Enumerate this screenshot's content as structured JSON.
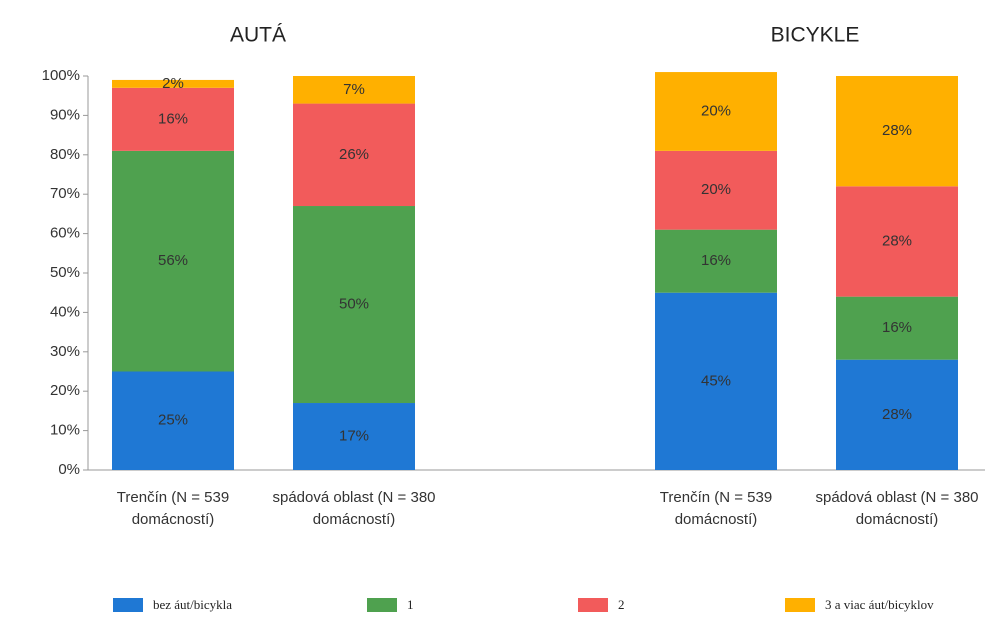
{
  "chart_data": {
    "type": "bar",
    "stacked": true,
    "annotations": [
      "AUTÁ",
      "BICYKLE"
    ],
    "categories": [
      "Trenčín (N = 539 domácností)",
      "spádová oblast (N = 380 domácností)",
      "Trenčín (N = 539 domácností)",
      "spádová oblast (N = 380 domácností)"
    ],
    "series": [
      {
        "name": "bez áut/bicykla",
        "color": "#1f78d4",
        "values": [
          25,
          17,
          45,
          28
        ],
        "value_labels": [
          "25%",
          "17%",
          "45%",
          "28%"
        ]
      },
      {
        "name": "1",
        "color": "#4fa14f",
        "values": [
          56,
          50,
          16,
          16
        ],
        "value_labels": [
          "56%",
          "50%",
          "16%",
          "16%"
        ]
      },
      {
        "name": "2",
        "color": "#f25b5b",
        "values": [
          16,
          26,
          20,
          28
        ],
        "value_labels": [
          "16%",
          "26%",
          "20%",
          "28%"
        ]
      },
      {
        "name": "3 a viac áut/bicyklov",
        "color": "#ffb000",
        "values": [
          2,
          7,
          20,
          28
        ],
        "value_labels": [
          "2%",
          "7%",
          "20%",
          "28%"
        ]
      }
    ],
    "ylim": [
      0,
      100
    ],
    "yticks": [
      {
        "value": 0,
        "label": "0%"
      },
      {
        "value": 10,
        "label": "10%"
      },
      {
        "value": 20,
        "label": "20%"
      },
      {
        "value": 30,
        "label": "30%"
      },
      {
        "value": 40,
        "label": "40%"
      },
      {
        "value": 50,
        "label": "50%"
      },
      {
        "value": 60,
        "label": "60%"
      },
      {
        "value": 70,
        "label": "70%"
      },
      {
        "value": 80,
        "label": "80%"
      },
      {
        "value": 90,
        "label": "90%"
      },
      {
        "value": 100,
        "label": "100%"
      }
    ],
    "legend": "bottom"
  }
}
